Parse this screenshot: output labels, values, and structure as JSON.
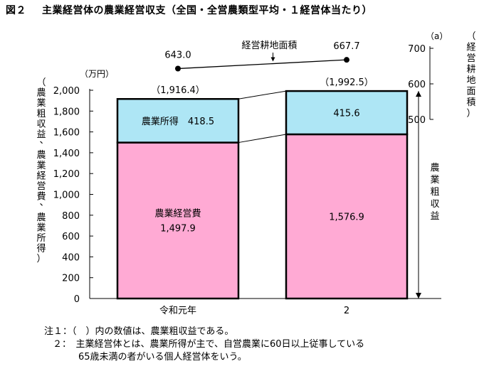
{
  "title": {
    "figure_no": "図２",
    "text": "主業経営体の農業経営収支（全国・全営農類型平均・１経営体当たり）"
  },
  "chart_data": {
    "type": "stacked-bar",
    "categories": [
      "令和元年",
      "2"
    ],
    "ylabel": "農業粗収益、農業経営費、農業所得",
    "yunit": "（万円）",
    "ylim": [
      0,
      2000
    ],
    "yticks": [
      "0",
      "200",
      "400",
      "600",
      "800",
      "1,000",
      "1,200",
      "1,400",
      "1,600",
      "1,800",
      "2,000"
    ],
    "series": [
      {
        "name": "農業経営費",
        "values": [
          1497.9,
          1576.9
        ],
        "labels": [
          "1,497.9",
          "1,576.9"
        ],
        "color": "#ffaad4"
      },
      {
        "name": "農業所得",
        "values": [
          418.5,
          415.6
        ],
        "labels": [
          "418.5",
          "415.6"
        ],
        "color": "#aee6f5"
      }
    ],
    "totals": {
      "values": [
        1916.4,
        1992.5
      ],
      "labels": [
        "（1,916.4）",
        "（1,992.5）"
      ]
    },
    "bracket_label": "農業粗収益",
    "line": {
      "name": "経営耕地面積",
      "values": [
        643.0,
        667.7
      ],
      "labels": [
        "643.0",
        "667.7"
      ],
      "axis_title": "経営耕地面積",
      "axis_unit": "（a）",
      "ylim": [
        500,
        700
      ],
      "yticks": [
        "500",
        "600",
        "700"
      ]
    }
  },
  "notes": {
    "note1": "注１：（　）内の数値は、農業粗収益である。",
    "note2": "２：　主業経営体とは、農業所得が主で、自営農業に60日以上従事している",
    "note3": "65歳未満の者がいる個人経営体をいう。"
  },
  "colors": {
    "expense": "#ffaad4",
    "income": "#aee6f5",
    "border": "#000000"
  }
}
